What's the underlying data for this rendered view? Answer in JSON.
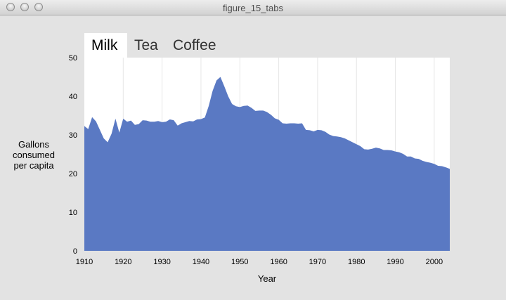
{
  "window": {
    "title": "figure_15_tabs"
  },
  "tabs": [
    {
      "label": "Milk",
      "active": true
    },
    {
      "label": "Tea",
      "active": false
    },
    {
      "label": "Coffee",
      "active": false
    }
  ],
  "colors": {
    "area": "#5a79c3",
    "plot_bg": "#ffffff",
    "grid": "#e6e6e6",
    "window_bg": "#e3e3e3"
  },
  "chart_data": {
    "type": "area",
    "title": "",
    "xlabel": "Year",
    "ylabel": "Gallons consumed per capita",
    "xlim": [
      1910,
      2004
    ],
    "ylim": [
      0,
      50
    ],
    "xticks": [
      1910,
      1920,
      1930,
      1940,
      1950,
      1960,
      1970,
      1980,
      1990,
      2000
    ],
    "yticks": [
      0,
      10,
      20,
      30,
      40,
      50
    ],
    "grid": "vertical",
    "series": [
      {
        "x": [
          1910,
          1911,
          1912,
          1913,
          1914,
          1915,
          1916,
          1917,
          1918,
          1919,
          1920,
          1921,
          1922,
          1923,
          1924,
          1925,
          1926,
          1927,
          1928,
          1929,
          1930,
          1931,
          1932,
          1933,
          1934,
          1935,
          1936,
          1937,
          1938,
          1939,
          1940,
          1941,
          1942,
          1943,
          1944,
          1945,
          1946,
          1947,
          1948,
          1949,
          1950,
          1951,
          1952,
          1953,
          1954,
          1955,
          1956,
          1957,
          1958,
          1959,
          1960,
          1961,
          1962,
          1963,
          1964,
          1965,
          1966,
          1967,
          1968,
          1969,
          1970,
          1971,
          1972,
          1973,
          1974,
          1975,
          1976,
          1977,
          1978,
          1979,
          1980,
          1981,
          1982,
          1983,
          1984,
          1985,
          1986,
          1987,
          1988,
          1989,
          1990,
          1991,
          1992,
          1993,
          1994,
          1995,
          1996,
          1997,
          1998,
          1999,
          2000,
          2001,
          2002,
          2003,
          2004
        ],
        "values": [
          32.3,
          31.5,
          34.6,
          33.5,
          31.3,
          29.1,
          28.1,
          30.3,
          34.2,
          30.6,
          34.2,
          33.4,
          33.7,
          32.6,
          32.8,
          33.8,
          33.7,
          33.4,
          33.4,
          33.6,
          33.3,
          33.4,
          34.0,
          33.8,
          32.4,
          33.0,
          33.3,
          33.6,
          33.5,
          34.0,
          34.1,
          34.5,
          37.5,
          41.4,
          44.1,
          45.0,
          42.6,
          40.0,
          38.0,
          37.4,
          37.2,
          37.5,
          37.6,
          37.0,
          36.2,
          36.3,
          36.3,
          35.9,
          35.2,
          34.3,
          33.9,
          33.0,
          32.9,
          33.0,
          33.0,
          32.9,
          33.0,
          31.3,
          31.2,
          30.9,
          31.3,
          31.2,
          30.8,
          30.1,
          29.7,
          29.6,
          29.4,
          29.1,
          28.6,
          28.1,
          27.6,
          27.1,
          26.3,
          26.2,
          26.4,
          26.7,
          26.5,
          26.1,
          26.1,
          26.0,
          25.7,
          25.5,
          25.1,
          24.4,
          24.4,
          23.9,
          23.8,
          23.3,
          23.0,
          22.8,
          22.5,
          22.0,
          21.9,
          21.6,
          21.2
        ]
      }
    ]
  }
}
